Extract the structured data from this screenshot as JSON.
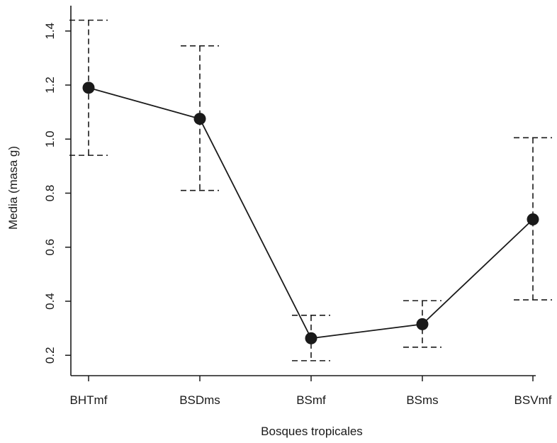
{
  "chart_data": {
    "type": "line",
    "title": "",
    "xlabel": "Bosques tropicales",
    "ylabel": "Media (masa g)",
    "categories": [
      "BHTmf",
      "BSDms",
      "BSmf",
      "BSms",
      "BSVmf"
    ],
    "series": [
      {
        "values": [
          1.19,
          1.075,
          0.263,
          0.315,
          0.703
        ],
        "error_lower": [
          0.94,
          0.81,
          0.18,
          0.23,
          0.405
        ],
        "error_upper": [
          1.44,
          1.345,
          0.348,
          0.402,
          1.005
        ]
      }
    ],
    "y_ticks": [
      0.2,
      0.4,
      0.6,
      0.8,
      1.0,
      1.2,
      1.4
    ],
    "y_tick_labels": [
      "0.2",
      "0.4",
      "0.6",
      "0.8",
      "1.0",
      "1.2",
      "1.4"
    ],
    "ylim": [
      0.18,
      1.485
    ],
    "grid": false,
    "legend": "none",
    "colors": {
      "line": "#1a1a1a",
      "marker": "#1a1a1a",
      "error_bar": "#1a1a1a"
    }
  }
}
